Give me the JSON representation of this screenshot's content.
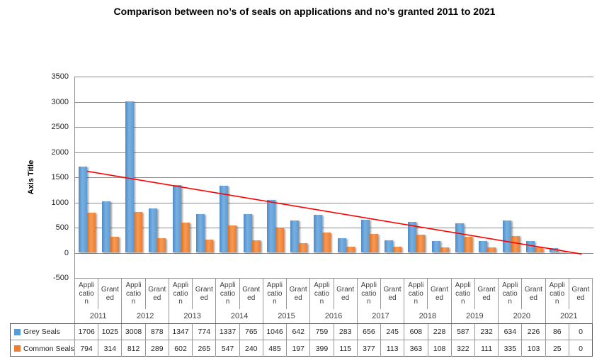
{
  "title": "Comparison between no’s of seals on applications and no’s granted 2011 to 2021",
  "chart_data": {
    "type": "bar",
    "title": "Comparison between no’s of seals on applications and no’s granted 2011 to 2021",
    "xlabel": "",
    "ylabel": "Axis Title",
    "ylim": [
      -500,
      3500
    ],
    "ytick_interval": 500,
    "yticks": [
      3500,
      3000,
      2500,
      2000,
      1500,
      1000,
      500,
      0,
      -500
    ],
    "grid": true,
    "legend_position": "data-table-left",
    "years": [
      "2011",
      "2012",
      "2013",
      "2014",
      "2015",
      "2016",
      "2017",
      "2018",
      "2019",
      "2020",
      "2021"
    ],
    "sub_categories": [
      {
        "label": "Application",
        "display": "Appli\ncatio\nn"
      },
      {
        "label": "Granted",
        "display": "Grant\ned"
      }
    ],
    "series": [
      {
        "name": "Grey Seals",
        "color": "#5b9bd5",
        "values": [
          1706,
          1025,
          3008,
          878,
          1347,
          774,
          1337,
          765,
          1046,
          642,
          759,
          283,
          656,
          245,
          608,
          228,
          587,
          232,
          634,
          226,
          86,
          0
        ]
      },
      {
        "name": "Common Seals",
        "color": "#ed7d31",
        "values": [
          794,
          314,
          812,
          289,
          602,
          265,
          547,
          240,
          485,
          197,
          399,
          115,
          377,
          113,
          363,
          108,
          322,
          111,
          335,
          103,
          25,
          0
        ]
      }
    ],
    "trendline": {
      "series": "Grey Seals",
      "color": "#ff0000",
      "start_value": 1620,
      "end_value": -25
    }
  },
  "colors": {
    "grey_seals": "#5b9bd5",
    "common_seals": "#ed7d31",
    "trendline": "#ff0000",
    "gridline": "#8c8c8c",
    "cell_border": "#969696",
    "table_outer_border": "#595959",
    "axis_text": "#262626",
    "category_text": "#3f3f3f"
  }
}
